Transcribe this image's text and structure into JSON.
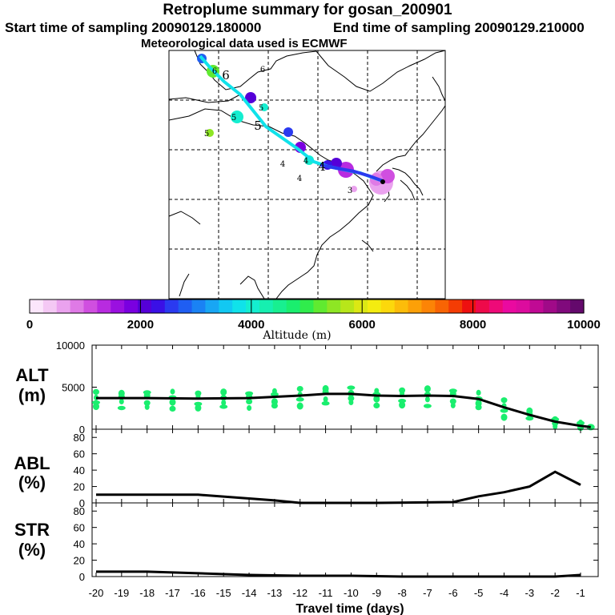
{
  "header": {
    "title": "Retroplume summary for gosan_200901",
    "start": "Start time of sampling 20090129.180000",
    "end": "End time of sampling 20090129.210000",
    "met": "Meteorological data used is ECMWF"
  },
  "colorbar": {
    "ticks": [
      "0",
      "2000",
      "4000",
      "6000",
      "8000",
      "10000"
    ],
    "label": "Altitude (m)",
    "colors": [
      "#fbe6fb",
      "#f4c8f4",
      "#eaa2ee",
      "#df7ae6",
      "#d04fe0",
      "#b82be0",
      "#9a10e0",
      "#7a00e0",
      "#5500d8",
      "#3a10e6",
      "#2a3af0",
      "#1f5ef2",
      "#1a82f4",
      "#18a6f4",
      "#12c8f2",
      "#10e2ea",
      "#14eed0",
      "#16efb0",
      "#18ef90",
      "#1aee6e",
      "#30ec4c",
      "#60ea30",
      "#8ee624",
      "#b8e61a",
      "#dce814",
      "#f4ec10",
      "#fcd80c",
      "#fcbc0a",
      "#fca008",
      "#fc8406",
      "#f86404",
      "#f43c04",
      "#ee1010",
      "#ee0a4a",
      "#ee0a78",
      "#ea0aa0",
      "#dc0c9e",
      "#c00a94",
      "#a00a88",
      "#800a7c",
      "#64096c"
    ]
  },
  "map_labels": [
    "6",
    "6",
    "6",
    "5",
    "5",
    "5",
    "5",
    "4",
    "4",
    "4",
    "4",
    "3"
  ],
  "panels": {
    "alt": {
      "label_top": "ALT",
      "label_bottom": "(m)",
      "yticks": [
        "10000",
        "5000",
        "0"
      ]
    },
    "abl": {
      "label_top": "ABL",
      "label_bottom": "(%)",
      "yticks": [
        "80",
        "60",
        "40",
        "20",
        "0"
      ]
    },
    "str": {
      "label_top": "STR",
      "label_bottom": "(%)",
      "yticks": [
        "80",
        "60",
        "40",
        "20",
        "0"
      ]
    }
  },
  "xaxis": {
    "ticks": [
      "-20",
      "-19",
      "-18",
      "-17",
      "-16",
      "-15",
      "-14",
      "-13",
      "-12",
      "-11",
      "-10",
      "-9",
      "-8",
      "-7",
      "-6",
      "-5",
      "-4",
      "-3",
      "-2",
      "-1"
    ],
    "label": "Travel time (days)"
  },
  "chart_data": [
    {
      "type": "line",
      "title": "ALT",
      "ylabel": "(m)",
      "xlabel": "Travel time (days)",
      "ylim": [
        0,
        10000
      ],
      "xlim": [
        -20,
        -0.6
      ],
      "x": [
        -20,
        -18,
        -16,
        -14,
        -12,
        -11,
        -10,
        -9,
        -8,
        -7,
        -6,
        -5,
        -4,
        -3,
        -2,
        -1,
        -0.6
      ],
      "values": [
        3700,
        3700,
        3650,
        3700,
        4000,
        4200,
        4200,
        4000,
        3950,
        4000,
        3950,
        3600,
        2600,
        1700,
        900,
        400,
        250
      ],
      "scatter_color": "#1aee6e"
    },
    {
      "type": "line",
      "title": "ABL",
      "ylabel": "(%)",
      "ylim": [
        0,
        90
      ],
      "xlim": [
        -20,
        -0.6
      ],
      "x": [
        -20,
        -16,
        -13,
        -12,
        -9,
        -6,
        -5,
        -4,
        -3,
        -2,
        -1
      ],
      "values": [
        10,
        10,
        3,
        0,
        0,
        1,
        8,
        13,
        20,
        38,
        22
      ]
    },
    {
      "type": "line",
      "title": "STR",
      "ylabel": "(%)",
      "ylim": [
        0,
        90
      ],
      "xlim": [
        -20,
        -0.6
      ],
      "x": [
        -20,
        -18,
        -16,
        -14,
        -12,
        -10,
        -8,
        -6,
        -4,
        -2,
        -1
      ],
      "values": [
        6,
        6,
        4,
        2,
        1,
        1,
        0,
        0,
        0,
        0,
        2
      ]
    }
  ]
}
